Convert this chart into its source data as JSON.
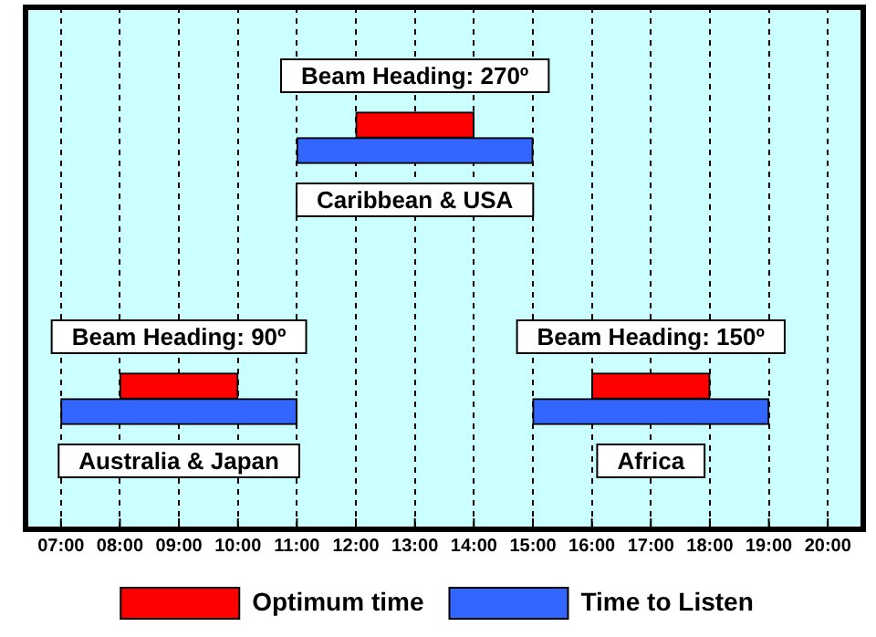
{
  "chart_data": {
    "type": "bar",
    "orientation": "horizontal",
    "categories": [
      null,
      null
    ],
    "series": [
      {
        "name": "Optimum time",
        "color": "#ff0000",
        "values": [
          2,
          2
        ],
        "base": [
          12,
          8
        ]
      },
      {
        "name": "Time to Listen",
        "color": "#3366ff",
        "values": [
          4,
          4
        ],
        "base": [
          11,
          7
        ]
      },
      {
        "color": "#ff0000",
        "values": [
          null,
          2
        ],
        "base": [
          null,
          16
        ]
      },
      {
        "color": "#3366ff",
        "values": [
          null,
          4
        ],
        "base": [
          null,
          15
        ]
      }
    ],
    "xlim": [
      6.4,
      20.6
    ],
    "xticks": [
      {
        "value": 7,
        "label": "07:00"
      },
      {
        "value": 8,
        "label": "08:00"
      },
      {
        "value": 9,
        "label": "09:00"
      },
      {
        "value": 10,
        "label": "10:00"
      },
      {
        "value": 11,
        "label": "11:00"
      },
      {
        "value": 12,
        "label": "12:00"
      },
      {
        "value": 13,
        "label": "13:00"
      },
      {
        "value": 14,
        "label": "14:00"
      },
      {
        "value": 15,
        "label": "15:00"
      },
      {
        "value": 16,
        "label": "16:00"
      },
      {
        "value": 17,
        "label": "17:00"
      },
      {
        "value": 18,
        "label": "18:00"
      },
      {
        "value": 19,
        "label": "19:00"
      },
      {
        "value": 20,
        "label": "20:00"
      }
    ],
    "annotations": [
      "Beam Heading: 270º",
      "Caribbean & USA",
      "Beam Heading: 90º",
      "Australia & Japan",
      "Beam Heading: 150º",
      "Africa"
    ],
    "grid": "x",
    "legend": "bottom"
  }
}
